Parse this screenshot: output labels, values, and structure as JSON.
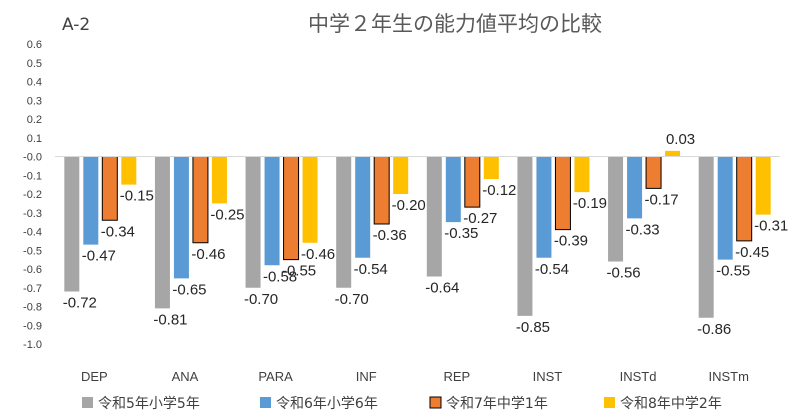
{
  "chart_data": {
    "type": "bar",
    "corner_label": "A-2",
    "title": "中学２年生の能力値平均の比較",
    "categories": [
      "DEP",
      "ANA",
      "PARA",
      "INF",
      "REP",
      "INST",
      "INSTd",
      "INSTm"
    ],
    "ylim": [
      -1.0,
      0.6
    ],
    "ytick_step": 0.1,
    "grid": false,
    "legend_position": "bottom",
    "series": [
      {
        "name": "令和5年小学5年",
        "color": "#A6A6A6",
        "stroke": "none",
        "values": [
          -0.72,
          -0.81,
          -0.7,
          -0.7,
          -0.64,
          -0.85,
          -0.56,
          -0.86
        ],
        "labels": [
          "-0.72",
          "-0.81",
          "-0.70",
          "-0.70",
          "-0.64",
          "-0.85",
          "-0.56",
          "-0.86"
        ]
      },
      {
        "name": "令和6年小学6年",
        "color": "#5B9BD5",
        "stroke": "none",
        "values": [
          -0.47,
          -0.65,
          -0.58,
          -0.54,
          -0.35,
          -0.54,
          -0.33,
          -0.55
        ],
        "labels": [
          "-0.47",
          "-0.65",
          "-0.58",
          "-0.54",
          "-0.35",
          "-0.54",
          "-0.33",
          "-0.55"
        ]
      },
      {
        "name": "令和7年中学1年",
        "color": "#ED7D31",
        "stroke": "#000000",
        "values": [
          -0.34,
          -0.46,
          -0.55,
          -0.36,
          -0.27,
          -0.39,
          -0.17,
          -0.45
        ],
        "labels": [
          "-0.34",
          "-0.46",
          "-0.55",
          "-0.36",
          "-0.27",
          "-0.39",
          "-0.17",
          "-0.45"
        ]
      },
      {
        "name": "令和8年中学2年",
        "color": "#FFC000",
        "stroke": "none",
        "values": [
          -0.15,
          -0.25,
          -0.46,
          -0.2,
          -0.12,
          -0.19,
          0.03,
          -0.31
        ],
        "labels": [
          "-0.15",
          "-0.25",
          "-0.46",
          "-0.20",
          "-0.12",
          "-0.19",
          "0.03",
          "-0.31"
        ]
      }
    ]
  }
}
